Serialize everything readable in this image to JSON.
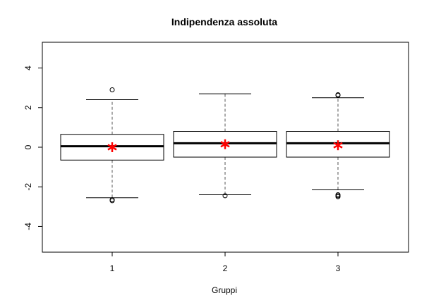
{
  "chart_data": {
    "type": "boxplot",
    "title": "Indipendenza assoluta",
    "xlabel": "Gruppi",
    "ylabel": "",
    "ylim": [
      -5.3,
      5.3
    ],
    "y_ticks": [
      "4",
      "2",
      "0",
      "-2",
      "-4"
    ],
    "y_tick_values": [
      4,
      2,
      0,
      -2,
      -4
    ],
    "categories": [
      "1",
      "2",
      "3"
    ],
    "boxes": [
      {
        "group": "1",
        "whisker_low": -2.55,
        "q1": -0.65,
        "median": 0.05,
        "q3": 0.65,
        "whisker_high": 2.4,
        "mean": 0.0,
        "outliers": [
          2.9,
          -2.65,
          -2.7
        ]
      },
      {
        "group": "2",
        "whisker_low": -2.4,
        "q1": -0.5,
        "median": 0.2,
        "q3": 0.8,
        "whisker_high": 2.7,
        "mean": 0.15,
        "outliers": [
          -2.45
        ]
      },
      {
        "group": "3",
        "whisker_low": -2.15,
        "q1": -0.5,
        "median": 0.2,
        "q3": 0.8,
        "whisker_high": 2.5,
        "mean": 0.1,
        "outliers": [
          2.65,
          2.62,
          -2.4,
          -2.45,
          -2.5
        ]
      }
    ],
    "colors": {
      "mean_marker": "#ff0000",
      "box": "#000000",
      "whisker": "#555555"
    }
  }
}
